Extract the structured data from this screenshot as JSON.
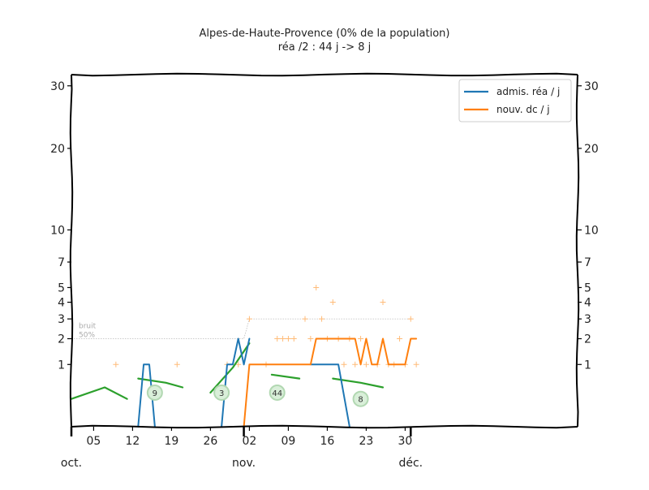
{
  "chart_data": {
    "type": "line",
    "title": "Alpes-de-Haute-Provence (0% de la population)",
    "subtitle": "réa /2 : 44 j -> 8 j",
    "ylim": [
      0,
      32
    ],
    "xlim": [
      "2020-10-01",
      "2020-12-31"
    ],
    "y_scale": "sqrt",
    "y_ticks": [
      1,
      2,
      3,
      4,
      5,
      7,
      10,
      20,
      30
    ],
    "x_ticks": [
      {
        "date": "2020-10-01",
        "label": ""
      },
      {
        "date": "2020-10-05",
        "label": "05"
      },
      {
        "date": "2020-10-12",
        "label": "12"
      },
      {
        "date": "2020-10-19",
        "label": "19"
      },
      {
        "date": "2020-10-26",
        "label": "26"
      },
      {
        "date": "2020-11-02",
        "label": "02"
      },
      {
        "date": "2020-11-09",
        "label": "09"
      },
      {
        "date": "2020-11-16",
        "label": "16"
      },
      {
        "date": "2020-11-23",
        "label": "23"
      },
      {
        "date": "2020-11-30",
        "label": "30"
      }
    ],
    "months": [
      {
        "date": "2020-10-01",
        "label": "oct."
      },
      {
        "date": "2020-11-01",
        "label": "nov."
      },
      {
        "date": "2020-12-01",
        "label": "déc."
      }
    ],
    "legend": {
      "position": "top-right"
    },
    "noise_band": {
      "labels": [
        "bruit",
        "50%"
      ],
      "points": [
        [
          "2020-10-01",
          2
        ],
        [
          "2020-11-01",
          2
        ],
        [
          "2020-11-02",
          3
        ],
        [
          "2020-12-01",
          3
        ]
      ]
    },
    "series": [
      {
        "name": "admis. réa / j",
        "color": "#1f77b4",
        "segments": [
          [
            [
              "2020-10-13",
              0
            ],
            [
              "2020-10-14",
              1
            ],
            [
              "2020-10-15",
              1
            ],
            [
              "2020-10-16",
              0
            ]
          ],
          [
            [
              "2020-10-28",
              0
            ],
            [
              "2020-10-29",
              1
            ],
            [
              "2020-10-30",
              1
            ],
            [
              "2020-10-31",
              2
            ],
            [
              "2020-11-01",
              1
            ],
            [
              "2020-11-02",
              2
            ]
          ],
          [
            [
              "2020-11-13",
              1
            ],
            [
              "2020-11-14",
              1
            ],
            [
              "2020-11-15",
              1
            ],
            [
              "2020-11-16",
              1
            ],
            [
              "2020-11-18",
              1
            ],
            [
              "2020-11-20",
              0
            ]
          ]
        ]
      },
      {
        "name": "nouv. dc / j",
        "color": "#ff7f0e",
        "segments": [
          [
            [
              "2020-11-01",
              0
            ],
            [
              "2020-11-02",
              1
            ],
            [
              "2020-11-03",
              1
            ],
            [
              "2020-11-06",
              1
            ],
            [
              "2020-11-07",
              1
            ],
            [
              "2020-11-08",
              1
            ],
            [
              "2020-11-09",
              1
            ],
            [
              "2020-11-10",
              1
            ],
            [
              "2020-11-11",
              1
            ],
            [
              "2020-11-12",
              1
            ],
            [
              "2020-11-13",
              1
            ],
            [
              "2020-11-14",
              2
            ],
            [
              "2020-11-15",
              2
            ],
            [
              "2020-11-16",
              2
            ],
            [
              "2020-11-17",
              2
            ],
            [
              "2020-11-18",
              2
            ],
            [
              "2020-11-19",
              2
            ],
            [
              "2020-11-20",
              2
            ],
            [
              "2020-11-21",
              2
            ],
            [
              "2020-11-22",
              1
            ],
            [
              "2020-11-23",
              2
            ],
            [
              "2020-11-24",
              1
            ],
            [
              "2020-11-25",
              1
            ],
            [
              "2020-11-26",
              2
            ],
            [
              "2020-11-27",
              1
            ],
            [
              "2020-11-28",
              1
            ],
            [
              "2020-11-29",
              1
            ],
            [
              "2020-11-30",
              1
            ],
            [
              "2020-12-01",
              2
            ],
            [
              "2020-12-02",
              2
            ]
          ]
        ]
      }
    ],
    "trend_segments": [
      {
        "color": "#2ca02c",
        "points": [
          [
            "2020-10-01",
            0.2
          ],
          [
            "2020-10-07",
            0.4
          ],
          [
            "2020-10-11",
            0.2
          ]
        ]
      },
      {
        "color": "#2ca02c",
        "points": [
          [
            "2020-10-13",
            0.6
          ],
          [
            "2020-10-18",
            0.5
          ],
          [
            "2020-10-21",
            0.4
          ]
        ]
      },
      {
        "color": "#2ca02c",
        "points": [
          [
            "2020-10-26",
            0.3
          ],
          [
            "2020-10-30",
            0.9
          ],
          [
            "2020-11-02",
            1.8
          ]
        ]
      },
      {
        "color": "#2ca02c",
        "points": [
          [
            "2020-11-06",
            0.7
          ],
          [
            "2020-11-11",
            0.6
          ]
        ]
      },
      {
        "color": "#2ca02c",
        "points": [
          [
            "2020-11-17",
            0.6
          ],
          [
            "2020-11-22",
            0.5
          ],
          [
            "2020-11-26",
            0.4
          ]
        ]
      }
    ],
    "markers": [
      {
        "date": "2020-10-16",
        "y": 0.3,
        "label": "9"
      },
      {
        "date": "2020-10-28",
        "y": 0.3,
        "label": "3"
      },
      {
        "date": "2020-11-07",
        "y": 0.3,
        "label": "44"
      },
      {
        "date": "2020-11-22",
        "y": 0.2,
        "label": "8"
      }
    ],
    "raw_points": [
      {
        "date": "2020-10-09",
        "y": 1
      },
      {
        "date": "2020-10-20",
        "y": 1
      },
      {
        "date": "2020-10-29",
        "y": 1
      },
      {
        "date": "2020-10-31",
        "y": 1
      },
      {
        "date": "2020-11-02",
        "y": 3
      },
      {
        "date": "2020-11-05",
        "y": 1
      },
      {
        "date": "2020-11-07",
        "y": 2
      },
      {
        "date": "2020-11-08",
        "y": 2
      },
      {
        "date": "2020-11-09",
        "y": 2
      },
      {
        "date": "2020-11-10",
        "y": 2
      },
      {
        "date": "2020-11-12",
        "y": 3
      },
      {
        "date": "2020-11-13",
        "y": 2
      },
      {
        "date": "2020-11-14",
        "y": 5
      },
      {
        "date": "2020-11-15",
        "y": 3
      },
      {
        "date": "2020-11-16",
        "y": 2
      },
      {
        "date": "2020-11-17",
        "y": 4
      },
      {
        "date": "2020-11-18",
        "y": 2
      },
      {
        "date": "2020-11-19",
        "y": 1
      },
      {
        "date": "2020-11-20",
        "y": 2
      },
      {
        "date": "2020-11-21",
        "y": 1
      },
      {
        "date": "2020-11-22",
        "y": 2
      },
      {
        "date": "2020-11-23",
        "y": 1
      },
      {
        "date": "2020-11-25",
        "y": 1
      },
      {
        "date": "2020-11-26",
        "y": 4
      },
      {
        "date": "2020-11-27",
        "y": 1
      },
      {
        "date": "2020-11-28",
        "y": 1
      },
      {
        "date": "2020-11-29",
        "y": 2
      },
      {
        "date": "2020-11-30",
        "y": 1
      },
      {
        "date": "2020-12-01",
        "y": 3
      },
      {
        "date": "2020-12-02",
        "y": 1
      }
    ],
    "raw_points_color": "#ffbb78",
    "grid": false
  }
}
